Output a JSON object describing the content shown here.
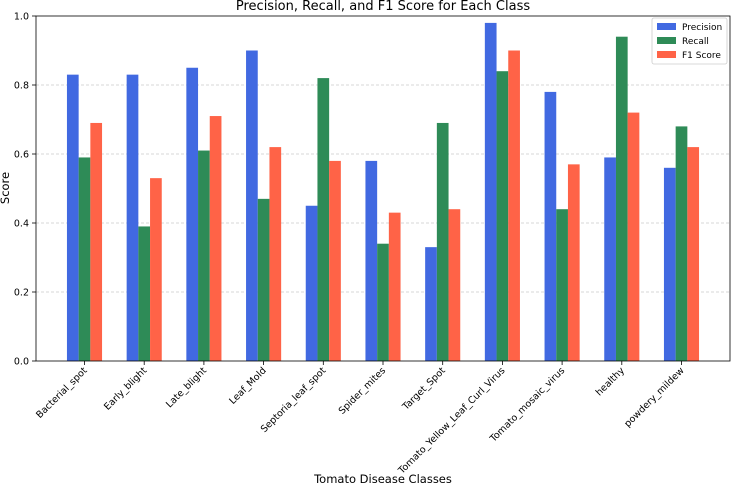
{
  "chart_data": {
    "type": "bar",
    "title": "Precision, Recall, and F1 Score for Each Class",
    "xlabel": "Tomato Disease Classes",
    "ylabel": "Score",
    "ylim": [
      0,
      1.0
    ],
    "yticks": [
      "0.0",
      "0.2",
      "0.4",
      "0.6",
      "0.8",
      "1.0"
    ],
    "grid": "horizontal dashed",
    "legend_position": "top-right",
    "categories": [
      "Bacterial_spot",
      "Early_blight",
      "Late_blight",
      "Leaf_Mold",
      "Septoria_leaf_spot",
      "Spider_mites",
      "Target_Spot",
      "Tomato_Yellow_Leaf_Curl_Virus",
      "Tomato_mosaic_virus",
      "healthy",
      "powdery_mildew"
    ],
    "series": [
      {
        "name": "Precision",
        "color": "#4169e1",
        "values": [
          0.83,
          0.83,
          0.85,
          0.9,
          0.45,
          0.58,
          0.33,
          0.98,
          0.78,
          0.59,
          0.56
        ]
      },
      {
        "name": "Recall",
        "color": "#2e8b57",
        "values": [
          0.59,
          0.39,
          0.61,
          0.47,
          0.82,
          0.34,
          0.69,
          0.84,
          0.44,
          0.94,
          0.68
        ]
      },
      {
        "name": "F1 Score",
        "color": "#ff6347",
        "values": [
          0.69,
          0.53,
          0.71,
          0.62,
          0.58,
          0.43,
          0.44,
          0.9,
          0.57,
          0.72,
          0.62
        ]
      }
    ]
  }
}
